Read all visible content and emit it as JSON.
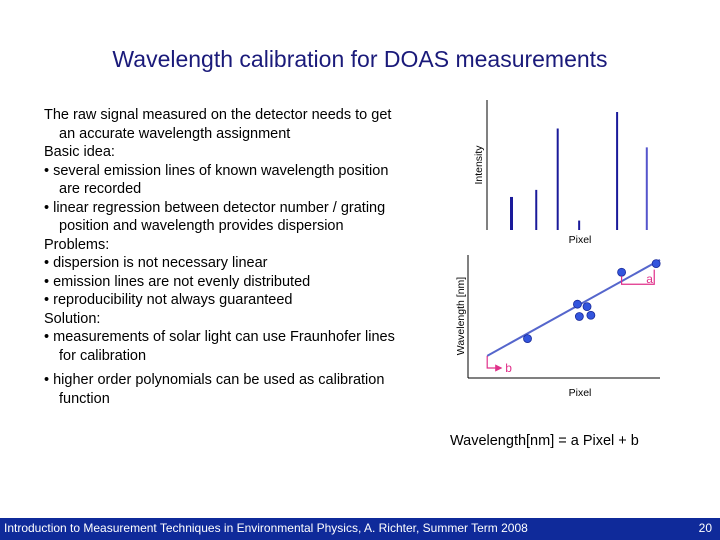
{
  "title": "Wavelength calibration for DOAS measurements",
  "text": {
    "intro": "The raw signal measured on the detector needs to get an accurate wavelength assignment",
    "basic_idea_heading": "Basic idea:",
    "basic_idea": [
      "several emission lines of known wavelength position are recorded",
      "linear regression between detector number / grating position and wavelength provides dispersion"
    ],
    "problems_heading": "Problems:",
    "problems": [
      "dispersion is not necessary linear",
      "emission lines are not evenly distributed",
      "reproducibility not always guaranteed"
    ],
    "solution_heading": "Solution:",
    "solution": [
      "measurements of solar light can use Fraunhofer lines for calibration",
      "higher order polynomials can be used as calibration function"
    ]
  },
  "formula": "Wavelength[nm]  = a Pixel + b",
  "chart_data": [
    {
      "type": "bar",
      "xlabel": "Pixel",
      "ylabel": "Intensity",
      "colors": [
        "#1a1a9a",
        "#1a1a9a",
        "#1a1a9a",
        "#1a1a9a",
        "#1a1a9a",
        "#5555cc"
      ],
      "lines": [
        {
          "pixel": 0.1,
          "intensity": 0.28
        },
        {
          "pixel": 0.25,
          "intensity": 0.34
        },
        {
          "pixel": 0.38,
          "intensity": 0.86
        },
        {
          "pixel": 0.51,
          "intensity": 0.08
        },
        {
          "pixel": 0.74,
          "intensity": 1.0
        },
        {
          "pixel": 0.92,
          "intensity": 0.7
        }
      ]
    },
    {
      "type": "scatter",
      "xlabel": "Pixel",
      "ylabel": "Wavelength [nm]",
      "point_color": "#3355dd",
      "line_color": "#5566cc",
      "annotation_color": "#e0308a",
      "labels": {
        "slope": "a",
        "intercept": "b"
      },
      "points": [
        {
          "x": 0.31,
          "y": 0.32
        },
        {
          "x": 0.57,
          "y": 0.6
        },
        {
          "x": 0.58,
          "y": 0.5
        },
        {
          "x": 0.62,
          "y": 0.58
        },
        {
          "x": 0.64,
          "y": 0.51
        },
        {
          "x": 0.8,
          "y": 0.86
        },
        {
          "x": 0.98,
          "y": 0.93
        }
      ],
      "fit": {
        "x0": 0.1,
        "y0": 0.18,
        "x1": 1.0,
        "y1": 0.96
      }
    }
  ],
  "footer": {
    "text": "Introduction to Measurement Techniques in Environmental Physics, A. Richter, Summer Term 2008",
    "page": "20"
  }
}
